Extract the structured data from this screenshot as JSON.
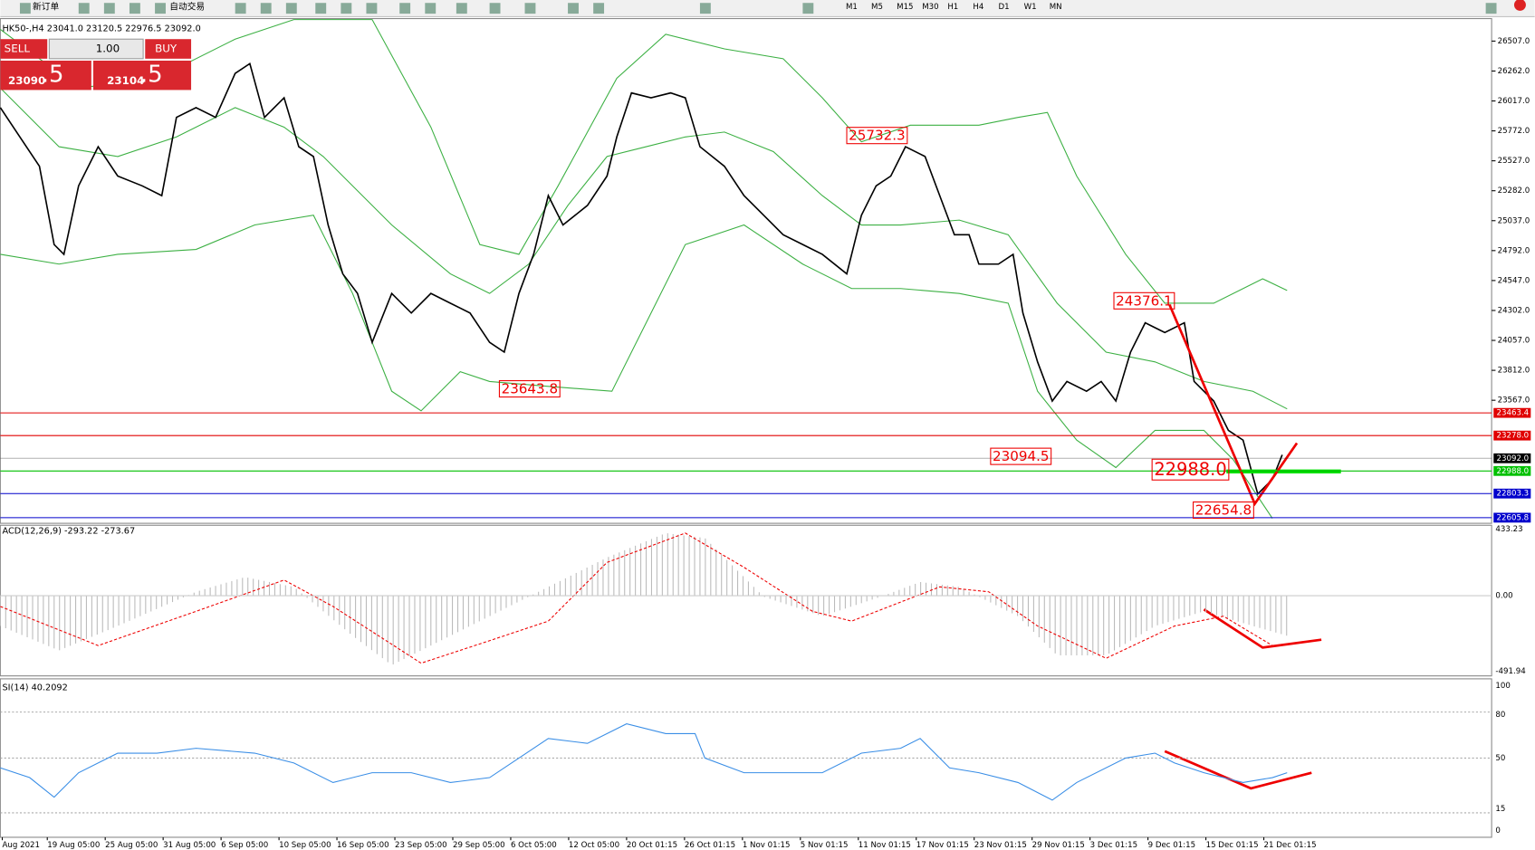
{
  "toolbar": {
    "buttons": [
      "新订单",
      "自动交易"
    ],
    "timeframes": [
      "M1",
      "M5",
      "M15",
      "M30",
      "H1",
      "H4",
      "D1",
      "W1",
      "MN"
    ]
  },
  "header": "HK50-,H4  23041.0 23120.5 22976.5 23092.0",
  "trade_panel": {
    "sell": "SELL",
    "lot": "1.00",
    "buy": "BUY",
    "sell_price": "23090",
    "sell_fraction": ".5",
    "buy_price": "23104",
    "buy_fraction": ".5"
  },
  "price_axis": [
    "26507.0",
    "26262.0",
    "26017.0",
    "25772.0",
    "25527.0",
    "25282.0",
    "25037.0",
    "24792.0",
    "24547.0",
    "24302.0",
    "24057.0",
    "23812.0",
    "23567.0"
  ],
  "levels": [
    {
      "label": "23463.4",
      "color": "#e00000"
    },
    {
      "label": "23278.0",
      "color": "#e00000"
    },
    {
      "label": "23092.0",
      "color": "#000000"
    },
    {
      "label": "22988.0",
      "color": "#00c000"
    },
    {
      "label": "22803.3",
      "color": "#0000cc"
    },
    {
      "label": "22605.8",
      "color": "#0000cc"
    }
  ],
  "annotations": [
    "25732.3",
    "24376.1",
    "23643.8",
    "23094.5",
    "22988.0",
    "22654.8"
  ],
  "macd": {
    "label": "ACD(12,26,9) -293.22 -273.67",
    "axis": [
      "433.23",
      "0.00",
      "-491.94"
    ]
  },
  "rsi": {
    "label": "SI(14) 40.2092",
    "axis": [
      "100",
      "80",
      "50",
      "15",
      "0"
    ]
  },
  "time_axis": [
    "Aug 2021",
    "19 Aug 05:00",
    "25 Aug 05:00",
    "31 Aug 05:00",
    "6 Sep 05:00",
    "10 Sep 05:00",
    "16 Sep 05:00",
    "23 Sep 05:00",
    "29 Sep 05:00",
    "6 Oct 05:00",
    "12 Oct 05:00",
    "20 Oct 01:15",
    "26 Oct 01:15",
    "1 Nov 01:15",
    "5 Nov 01:15",
    "11 Nov 01:15",
    "17 Nov 01:15",
    "23 Nov 01:15",
    "29 Nov 01:15",
    "3 Dec 01:15",
    "9 Dec 01:15",
    "15 Dec 01:15",
    "21 Dec 01:15"
  ]
}
